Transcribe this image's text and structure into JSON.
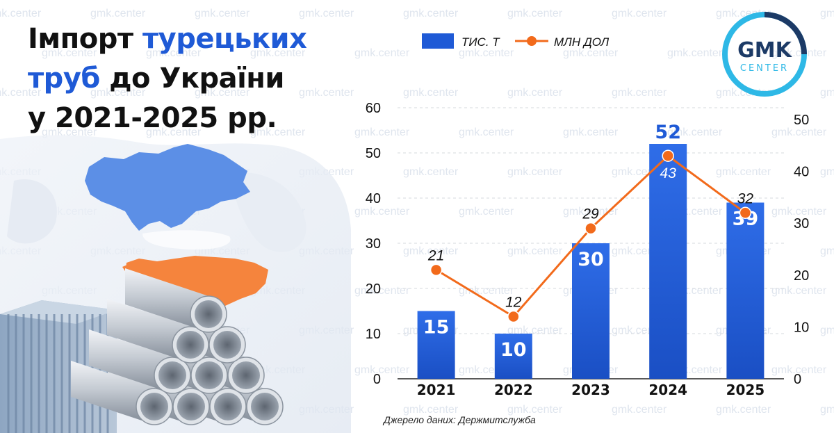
{
  "title": {
    "line1_a": "Імпорт ",
    "line1_b": "турецьких",
    "line2_a": "труб",
    "line2_b": " до України",
    "line3": "у 2021-2025 рр."
  },
  "logo": {
    "main": "GMK",
    "sub": "CENTER"
  },
  "watermark": "gmk.center",
  "source": "Джерело даних: Держмитслужба",
  "chart_data": {
    "type": "bar",
    "categories": [
      "2021",
      "2022",
      "2023",
      "2024",
      "2025"
    ],
    "series": [
      {
        "name": "ТИС. Т",
        "type": "bar",
        "axis": "left",
        "values": [
          15,
          10,
          30,
          52,
          39
        ]
      },
      {
        "name": "МЛН ДОЛ",
        "type": "line",
        "axis": "right",
        "values": [
          21,
          12,
          29,
          43,
          32
        ]
      }
    ],
    "y_left": {
      "min": 0,
      "max": 60,
      "ticks": [
        0,
        10,
        20,
        30,
        40,
        50,
        60
      ]
    },
    "y_right": {
      "min": 0,
      "max": 50,
      "ticks": [
        0,
        10,
        20,
        30,
        40,
        50
      ]
    },
    "grid": true,
    "legend_position": "top",
    "colors": {
      "bar": "#1f5ad6",
      "line": "#f26a1b",
      "accent": "#1f5ad6",
      "turkey": "#f5843d",
      "ukraine": "#5c8fe6"
    }
  }
}
